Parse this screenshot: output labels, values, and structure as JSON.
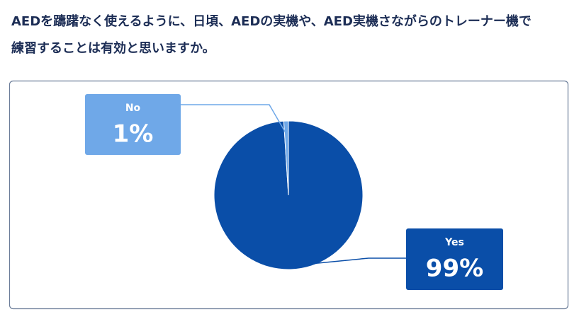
{
  "chart_data": {
    "type": "pie",
    "title": [
      "AEDを躊躇なく使えるように、日頃、AEDの実機や、AED実機さながらのトレーナー機で",
      "練習することは有効と思いますか。"
    ],
    "categories": [
      "Yes",
      "No"
    ],
    "values": [
      99,
      1
    ],
    "value_labels": [
      "99%",
      "1%"
    ],
    "colors": [
      "#0a4ea8",
      "#6fa8e8"
    ]
  }
}
